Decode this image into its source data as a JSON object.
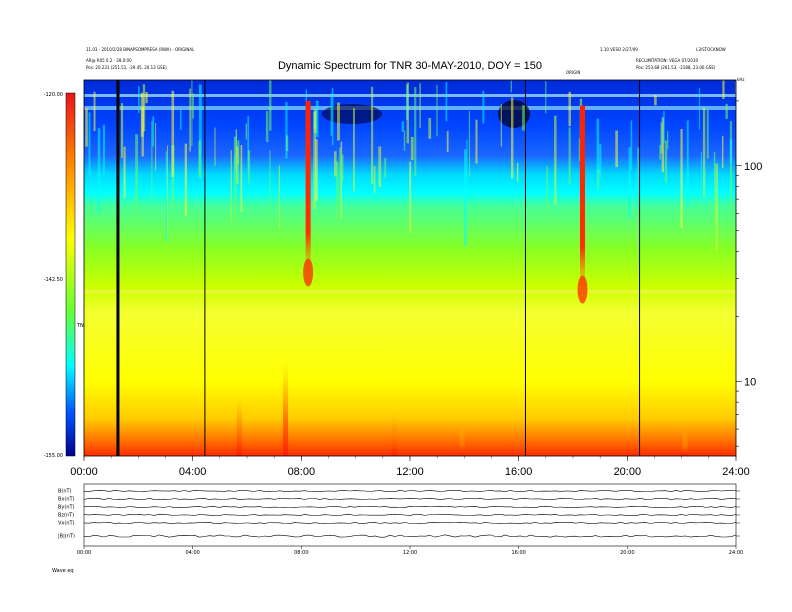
{
  "header": {
    "left_line1": "11.03 - 2010/2/28 BINAPSOMPRESA (RWA) - ORIGINAL",
    "left_line2": "AR@ R05 0.2 - 28.0:00",
    "left_line3": "Pos: 20.231 (251.51, -29.45, 20.13 GSE)",
    "right_line1": "1.10 VESO 2/27/09",
    "right_line2": "L3/STOCKNOW",
    "right_line3": "RECLIMITATION: VEGA 07/2010",
    "right_line4": "Pos: 253.68 (261.53, -2188, 23.00 GSE)",
    "marker": "ORIGIN",
    "corner": "kHz"
  },
  "title": "Dynamic Spectrum for TNR 30-MAY-2010, DOY = 150",
  "colorbar": {
    "ticks": [
      "-120.00",
      "-142.50",
      "-155.00"
    ],
    "label": "TNR"
  },
  "chart_data": [
    {
      "type": "heatmap",
      "title": "Dynamic Spectrum for TNR 30-MAY-2010, DOY = 150",
      "x_ticks": [
        "00:00",
        "04:00",
        "08:00",
        "12:00",
        "16:00",
        "20:00",
        "24:00"
      ],
      "x_range": [
        0,
        24
      ],
      "y_scale": "log",
      "y_range_khz": [
        4.5,
        250
      ],
      "y_ticks": [
        10,
        100
      ],
      "color_range": [
        -155.0,
        -120.0
      ],
      "colorbar_ticks": [
        -120.0,
        -142.5,
        -155.0
      ],
      "vertical_lines_hours": [
        1.25,
        4.45,
        16.25,
        20.45
      ],
      "bursts": [
        {
          "hour": 8.25,
          "top_khz": 200,
          "bottom_khz": 30
        },
        {
          "hour": 18.35,
          "top_khz": 190,
          "bottom_khz": 25
        }
      ]
    },
    {
      "type": "line",
      "panel_labels": [
        "B(nT)",
        "Bx(nT)",
        "By(nT)",
        "Bz(nT)",
        "Vx(nT)",
        "|B|(nT)"
      ],
      "x_ticks": [
        "00:00",
        "04:00",
        "08:00",
        "12:00",
        "16:00",
        "20:00",
        "24:00"
      ],
      "footer_label": "Wave  eq"
    }
  ]
}
